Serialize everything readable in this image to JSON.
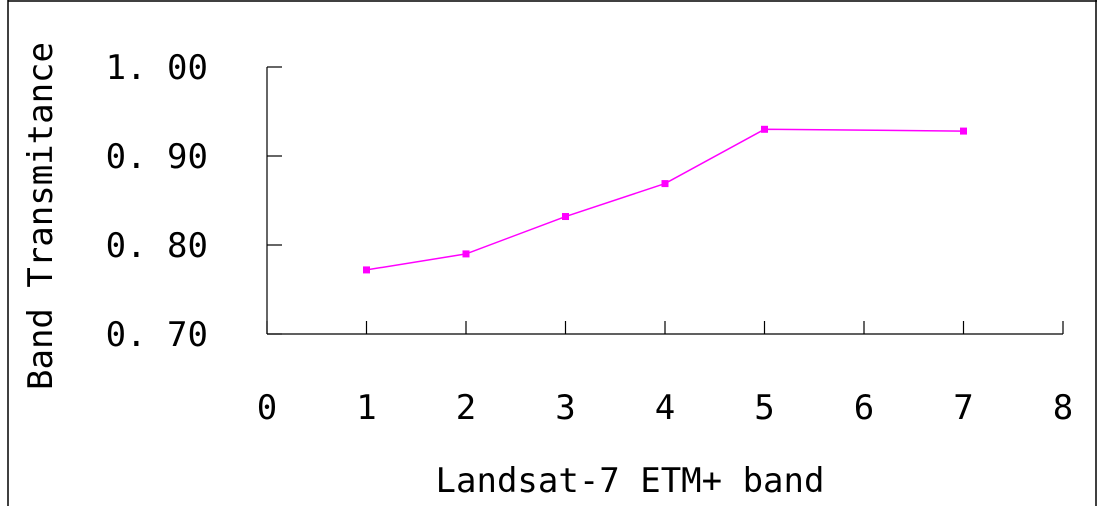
{
  "chart_data": {
    "type": "line",
    "title": "",
    "xlabel": "Landsat-7 ETM+ band",
    "ylabel": "Band Transmitance",
    "x_ticks": [
      "0",
      "1",
      "2",
      "3",
      "4",
      "5",
      "6",
      "7",
      "8"
    ],
    "y_ticks": [
      "0.70",
      "0.80",
      "0.90",
      "1.00"
    ],
    "x_tick_labels_display": [
      "0",
      "1",
      "2",
      "3",
      "4",
      "5",
      "6",
      "7",
      "8"
    ],
    "y_tick_labels_display": [
      "0. 70",
      "0. 80",
      "0. 90",
      "1. 00"
    ],
    "xlim": [
      0,
      8
    ],
    "ylim": [
      0.7,
      1.0
    ],
    "grid": false,
    "legend": "none",
    "series": [
      {
        "color": "#ff00ff",
        "marker": "square",
        "x": [
          1,
          2,
          3,
          4,
          5,
          7
        ],
        "y": [
          0.772,
          0.79,
          0.832,
          0.869,
          0.93,
          0.928
        ]
      }
    ]
  }
}
